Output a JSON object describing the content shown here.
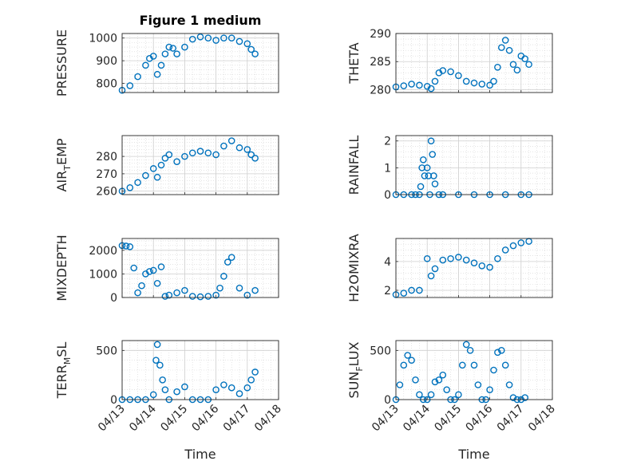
{
  "figure": {
    "title": "Figure 1 medium",
    "xlabel": "Time",
    "marker_color": "#0072bd",
    "grid": "major and minor, dotted",
    "marker": "open circle"
  },
  "chart_data": [
    {
      "type": "scatter",
      "panel": "pressure",
      "title": "Figure 1 medium",
      "ylabel": "PRESSURE",
      "xlabel": "",
      "xlim": [
        "04/13",
        "04/18"
      ],
      "ylim": [
        760,
        1020
      ],
      "yticks": [
        800,
        900,
        1000
      ],
      "xticks": [
        "04/13",
        "04/14",
        "04/15",
        "04/16",
        "04/17",
        "04/18"
      ],
      "show_xticklabels": false,
      "x": [
        "04/13 00:00",
        "04/13 06:00",
        "04/13 12:00",
        "04/13 18:00",
        "04/13 21:00",
        "04/14 00:00",
        "04/14 03:00",
        "04/14 06:00",
        "04/14 09:00",
        "04/14 12:00",
        "04/14 15:00",
        "04/14 18:00",
        "04/15 00:00",
        "04/15 06:00",
        "04/15 12:00",
        "04/15 18:00",
        "04/16 00:00",
        "04/16 06:00",
        "04/16 12:00",
        "04/16 18:00",
        "04/17 00:00",
        "04/17 03:00",
        "04/17 06:00"
      ],
      "y": [
        770,
        790,
        830,
        880,
        910,
        920,
        840,
        880,
        930,
        960,
        955,
        930,
        960,
        995,
        1005,
        1000,
        990,
        1000,
        1000,
        985,
        975,
        950,
        930
      ]
    },
    {
      "type": "scatter",
      "panel": "theta",
      "title": "",
      "ylabel": "THETA",
      "xlabel": "",
      "xlim": [
        "04/13",
        "04/18"
      ],
      "ylim": [
        279.5,
        290
      ],
      "yticks": [
        280,
        285,
        290
      ],
      "xticks": [
        "04/13",
        "04/14",
        "04/15",
        "04/16",
        "04/17",
        "04/18"
      ],
      "show_xticklabels": false,
      "x": [
        "04/13 00:00",
        "04/13 06:00",
        "04/13 12:00",
        "04/13 18:00",
        "04/14 00:00",
        "04/14 03:00",
        "04/14 06:00",
        "04/14 09:00",
        "04/14 12:00",
        "04/14 18:00",
        "04/15 00:00",
        "04/15 06:00",
        "04/15 12:00",
        "04/15 18:00",
        "04/16 00:00",
        "04/16 03:00",
        "04/16 06:00",
        "04/16 09:00",
        "04/16 12:00",
        "04/16 15:00",
        "04/16 18:00",
        "04/16 21:00",
        "04/17 00:00",
        "04/17 03:00",
        "04/17 06:00"
      ],
      "y": [
        280.5,
        280.7,
        281.0,
        280.8,
        280.6,
        280.2,
        281.5,
        283.0,
        283.4,
        283.2,
        282.5,
        281.5,
        281.2,
        281.0,
        280.8,
        281.5,
        284.0,
        287.5,
        288.8,
        287.0,
        284.5,
        283.5,
        286.0,
        285.5,
        284.5
      ]
    },
    {
      "type": "scatter",
      "panel": "air_temp",
      "title": "",
      "ylabel_parts": [
        "AIR",
        "T",
        "EMP"
      ],
      "xlabel": "",
      "xlim": [
        "04/13",
        "04/18"
      ],
      "ylim": [
        258,
        292
      ],
      "yticks": [
        260,
        270,
        280
      ],
      "xticks": [
        "04/13",
        "04/14",
        "04/15",
        "04/16",
        "04/17",
        "04/18"
      ],
      "show_xticklabels": false,
      "x": [
        "04/13 00:00",
        "04/13 06:00",
        "04/13 12:00",
        "04/13 18:00",
        "04/14 00:00",
        "04/14 03:00",
        "04/14 06:00",
        "04/14 09:00",
        "04/14 12:00",
        "04/14 18:00",
        "04/15 00:00",
        "04/15 06:00",
        "04/15 12:00",
        "04/15 18:00",
        "04/16 00:00",
        "04/16 06:00",
        "04/16 12:00",
        "04/16 18:00",
        "04/17 00:00",
        "04/17 03:00",
        "04/17 06:00"
      ],
      "y": [
        260,
        262,
        265,
        269,
        273,
        268,
        275,
        279,
        281,
        277,
        280,
        282,
        283,
        282,
        281,
        286,
        289,
        285,
        284,
        281,
        279
      ]
    },
    {
      "type": "scatter",
      "panel": "rainfall",
      "title": "",
      "ylabel": "RAINFALL",
      "xlabel": "",
      "xlim": [
        "04/13",
        "04/18"
      ],
      "ylim": [
        0,
        2.2
      ],
      "yticks": [
        0,
        1,
        2
      ],
      "xticks": [
        "04/13",
        "04/14",
        "04/15",
        "04/16",
        "04/17",
        "04/18"
      ],
      "show_xticklabels": false,
      "x": [
        "04/13 00:00",
        "04/13 06:00",
        "04/13 12:00",
        "04/13 15:00",
        "04/13 18:00",
        "04/13 19:00",
        "04/13 20:00",
        "04/13 21:00",
        "04/13 22:00",
        "04/14 00:00",
        "04/14 01:00",
        "04/14 02:00",
        "04/14 03:00",
        "04/14 04:00",
        "04/14 05:00",
        "04/14 06:00",
        "04/14 09:00",
        "04/14 12:00",
        "04/15 00:00",
        "04/15 12:00",
        "04/16 00:00",
        "04/16 12:00",
        "04/17 00:00",
        "04/17 06:00"
      ],
      "y": [
        0,
        0,
        0,
        0,
        0,
        0.3,
        1.0,
        1.3,
        0.7,
        1.0,
        0.7,
        0,
        2.0,
        1.5,
        0.7,
        0.4,
        0,
        0,
        0,
        0,
        0,
        0,
        0,
        0
      ]
    },
    {
      "type": "scatter",
      "panel": "mixdepth",
      "title": "",
      "ylabel": "MIXDEPTH",
      "xlabel": "",
      "xlim": [
        "04/13",
        "04/18"
      ],
      "ylim": [
        0,
        2500
      ],
      "yticks": [
        0,
        1000,
        2000
      ],
      "xticks": [
        "04/13",
        "04/14",
        "04/15",
        "04/16",
        "04/17",
        "04/18"
      ],
      "show_xticklabels": false,
      "x": [
        "04/13 00:00",
        "04/13 03:00",
        "04/13 06:00",
        "04/13 09:00",
        "04/13 12:00",
        "04/13 15:00",
        "04/13 18:00",
        "04/13 21:00",
        "04/14 00:00",
        "04/14 03:00",
        "04/14 06:00",
        "04/14 09:00",
        "04/14 12:00",
        "04/14 18:00",
        "04/15 00:00",
        "04/15 06:00",
        "04/15 12:00",
        "04/15 18:00",
        "04/16 00:00",
        "04/16 03:00",
        "04/16 06:00",
        "04/16 09:00",
        "04/16 12:00",
        "04/16 18:00",
        "04/17 00:00",
        "04/17 06:00"
      ],
      "y": [
        2200,
        2180,
        2150,
        1250,
        200,
        500,
        1000,
        1100,
        1150,
        600,
        1300,
        50,
        100,
        200,
        300,
        50,
        30,
        50,
        100,
        400,
        900,
        1500,
        1700,
        400,
        100,
        300
      ]
    },
    {
      "type": "scatter",
      "panel": "h2omixra",
      "title": "",
      "ylabel": "H2OMIXRA",
      "xlabel": "",
      "xlim": [
        "04/13",
        "04/18"
      ],
      "ylim": [
        1.5,
        5.6
      ],
      "yticks": [
        2,
        4
      ],
      "xticks": [
        "04/13",
        "04/14",
        "04/15",
        "04/16",
        "04/17",
        "04/18"
      ],
      "show_xticklabels": false,
      "x": [
        "04/13 00:00",
        "04/13 06:00",
        "04/13 12:00",
        "04/13 18:00",
        "04/14 00:00",
        "04/14 03:00",
        "04/14 06:00",
        "04/14 12:00",
        "04/14 18:00",
        "04/15 00:00",
        "04/15 06:00",
        "04/15 12:00",
        "04/15 18:00",
        "04/16 00:00",
        "04/16 06:00",
        "04/16 12:00",
        "04/16 18:00",
        "04/17 00:00",
        "04/17 06:00"
      ],
      "y": [
        1.7,
        1.8,
        2.0,
        2.0,
        4.2,
        3.0,
        3.5,
        4.1,
        4.2,
        4.3,
        4.1,
        3.9,
        3.7,
        3.6,
        4.2,
        4.8,
        5.1,
        5.3,
        5.4
      ]
    },
    {
      "type": "scatter",
      "panel": "terr_msl",
      "title": "",
      "ylabel_parts": [
        "TERR",
        "M",
        "SL"
      ],
      "xlabel": "",
      "xlim": [
        "04/13",
        "04/18"
      ],
      "ylim": [
        0,
        600
      ],
      "yticks": [
        0,
        500
      ],
      "xticks": [
        "04/13",
        "04/14",
        "04/15",
        "04/16",
        "04/17",
        "04/18"
      ],
      "show_xticklabels": true,
      "x": [
        "04/13 00:00",
        "04/13 06:00",
        "04/13 12:00",
        "04/13 18:00",
        "04/14 00:00",
        "04/14 02:00",
        "04/14 03:00",
        "04/14 05:00",
        "04/14 07:00",
        "04/14 09:00",
        "04/14 12:00",
        "04/14 18:00",
        "04/15 00:00",
        "04/15 06:00",
        "04/15 12:00",
        "04/15 18:00",
        "04/16 00:00",
        "04/16 06:00",
        "04/16 12:00",
        "04/16 18:00",
        "04/17 00:00",
        "04/17 03:00",
        "04/17 06:00"
      ],
      "y": [
        0,
        0,
        0,
        0,
        50,
        400,
        560,
        350,
        200,
        100,
        0,
        80,
        130,
        0,
        0,
        0,
        100,
        150,
        120,
        60,
        120,
        200,
        280
      ]
    },
    {
      "type": "scatter",
      "panel": "sun_flux",
      "title": "",
      "ylabel_parts": [
        "SUN",
        "F",
        "LUX"
      ],
      "xlabel": "",
      "xlim": [
        "04/13",
        "04/18"
      ],
      "ylim": [
        0,
        600
      ],
      "yticks": [
        0,
        500
      ],
      "xticks": [
        "04/13",
        "04/14",
        "04/15",
        "04/16",
        "04/17",
        "04/18"
      ],
      "show_xticklabels": true,
      "x": [
        "04/13 00:00",
        "04/13 03:00",
        "04/13 06:00",
        "04/13 09:00",
        "04/13 12:00",
        "04/13 15:00",
        "04/13 18:00",
        "04/13 21:00",
        "04/14 00:00",
        "04/14 03:00",
        "04/14 06:00",
        "04/14 09:00",
        "04/14 12:00",
        "04/14 15:00",
        "04/14 18:00",
        "04/14 21:00",
        "04/15 00:00",
        "04/15 03:00",
        "04/15 06:00",
        "04/15 09:00",
        "04/15 12:00",
        "04/15 15:00",
        "04/15 18:00",
        "04/15 21:00",
        "04/16 00:00",
        "04/16 03:00",
        "04/16 06:00",
        "04/16 09:00",
        "04/16 12:00",
        "04/16 15:00",
        "04/16 18:00",
        "04/16 21:00",
        "04/17 00:00",
        "04/17 03:00"
      ],
      "y": [
        0,
        150,
        350,
        450,
        400,
        200,
        50,
        0,
        0,
        50,
        180,
        200,
        250,
        100,
        0,
        0,
        50,
        350,
        560,
        500,
        350,
        150,
        0,
        0,
        100,
        300,
        480,
        500,
        350,
        150,
        20,
        0,
        0,
        20
      ]
    }
  ]
}
